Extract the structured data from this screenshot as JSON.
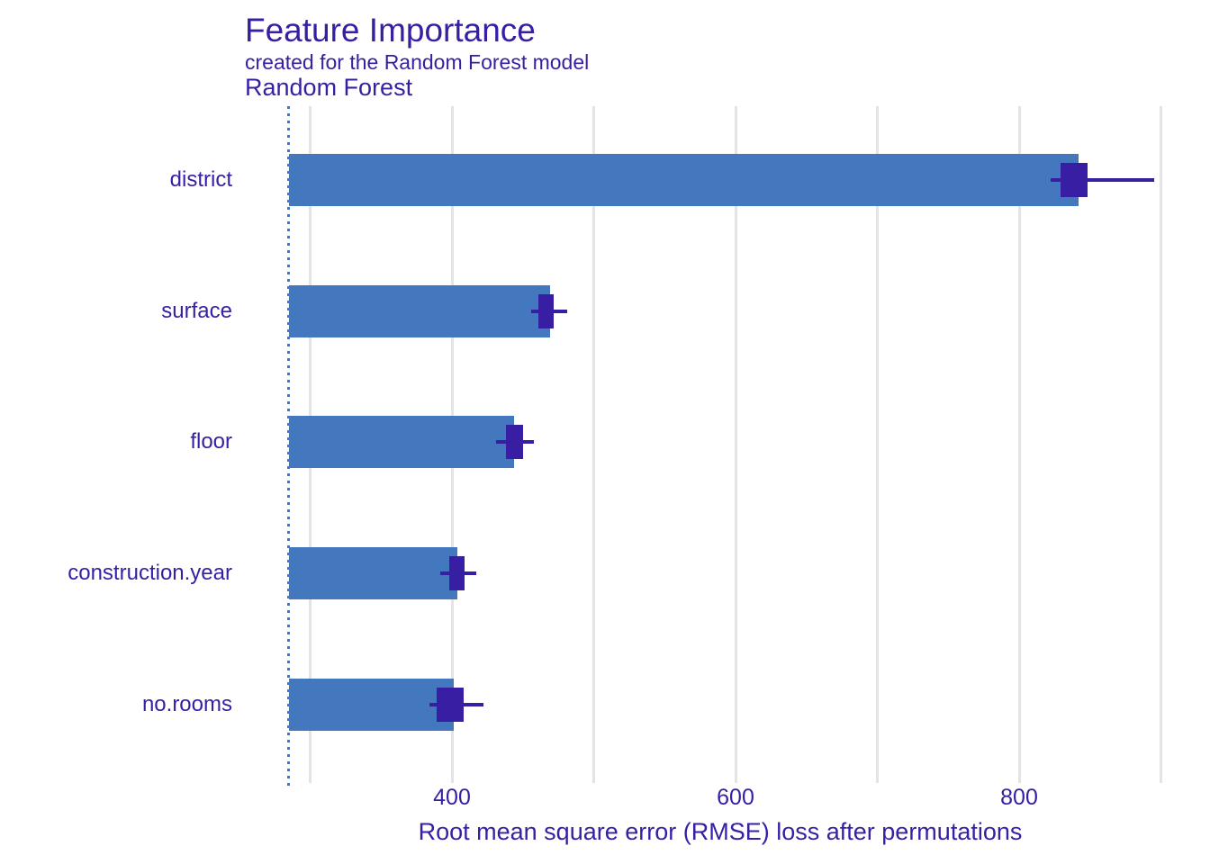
{
  "colors": {
    "bar_fill": "#4378bf",
    "boxplot_fill": "#371ea3",
    "text": "#371ea3",
    "gridline": "#e4e4e4",
    "background": "#ffffff"
  },
  "header": {
    "title": "Feature Importance",
    "subtitle": "created for the Random Forest model",
    "facet_label": "Random Forest"
  },
  "chart_data": {
    "type": "bar",
    "orientation": "horizontal",
    "title": "Feature Importance",
    "subtitle": "created for the Random Forest model",
    "facet": "Random Forest",
    "xlabel": "Root mean square error (RMSE) loss after permutations",
    "ylabel": "",
    "grid": "vertical-major-only",
    "legend": "none",
    "xlim": [
      285,
      935
    ],
    "x_axis": {
      "ticks": [
        400,
        600,
        800
      ],
      "gridlines": [
        300,
        400,
        500,
        600,
        700,
        800,
        900
      ],
      "label": "Root mean square error (RMSE) loss after permutations"
    },
    "baseline_full_model_loss": 285,
    "categories": [
      "district",
      "surface",
      "floor",
      "construction.year",
      "no.rooms"
    ],
    "values": [
      842,
      469,
      444,
      404,
      401
    ],
    "bars": [
      {
        "feature": "district",
        "dropout_loss": 842,
        "whisker_low": 822,
        "q1": 829,
        "q3": 848,
        "whisker_high": 895
      },
      {
        "feature": "surface",
        "dropout_loss": 469,
        "whisker_low": 456,
        "q1": 461,
        "q3": 472,
        "whisker_high": 481
      },
      {
        "feature": "floor",
        "dropout_loss": 444,
        "whisker_low": 431,
        "q1": 438,
        "q3": 450,
        "whisker_high": 458
      },
      {
        "feature": "construction.year",
        "dropout_loss": 404,
        "whisker_low": 392,
        "q1": 398,
        "q3": 409,
        "whisker_high": 417
      },
      {
        "feature": "no.rooms",
        "dropout_loss": 401,
        "whisker_low": 384,
        "q1": 389,
        "q3": 408,
        "whisker_high": 422
      }
    ]
  }
}
